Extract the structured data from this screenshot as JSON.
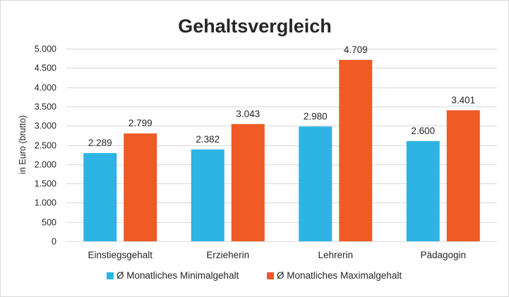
{
  "chart_data": {
    "type": "bar",
    "title": "Gehaltsvergleich",
    "ylabel": "in Euro (brutto)",
    "xlabel": "",
    "ylim": [
      0,
      5000
    ],
    "yticks": [
      0,
      500,
      1000,
      1500,
      2000,
      2500,
      3000,
      3500,
      4000,
      4500,
      5000
    ],
    "ytick_labels": [
      "0",
      "500",
      "1.000",
      "1.500",
      "2.000",
      "2.500",
      "3.000",
      "3.500",
      "4.000",
      "4.500",
      "5.000"
    ],
    "grid": true,
    "legend_position": "bottom",
    "categories": [
      "Einstiegsgehalt",
      "Erzieherin",
      "Lehrerin",
      "Pädagogin"
    ],
    "series": [
      {
        "name": "Ø Monatliches Minimalgehalt",
        "color": "#2db3e4",
        "values": [
          2289,
          2382,
          2980,
          2600
        ],
        "value_labels": [
          "2.289",
          "2.382",
          "2.980",
          "2.600"
        ]
      },
      {
        "name": "Ø Monatliches Maximalgehalt",
        "color": "#f05a24",
        "values": [
          2799,
          3043,
          4709,
          3401
        ],
        "value_labels": [
          "2.799",
          "3.043",
          "4.709",
          "3.401"
        ]
      }
    ]
  }
}
